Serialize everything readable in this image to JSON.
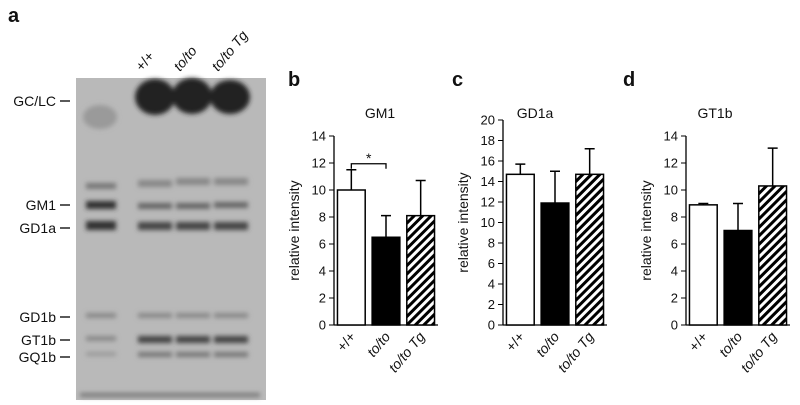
{
  "gel": {
    "panel": "a",
    "lanes": [
      "+/+",
      "to/to",
      "to/to Tg"
    ],
    "bands": [
      "GC/LC",
      "GM1",
      "GD1a",
      "GD1b",
      "GT1b",
      "GQ1b"
    ]
  },
  "chart_data": [
    {
      "type": "bar",
      "panel": "b",
      "title": "GM1",
      "ylabel": "relative intensity",
      "categories": [
        "+/+",
        "to/to",
        "to/to Tg"
      ],
      "values": [
        10.0,
        6.5,
        8.1
      ],
      "errors": [
        1.5,
        1.6,
        2.6
      ],
      "fills": [
        "#ffffff",
        "#000000",
        "hatch"
      ],
      "ylim": [
        0,
        14
      ],
      "yticks": [
        0,
        2,
        4,
        6,
        8,
        10,
        12,
        14
      ],
      "annotation": "*"
    },
    {
      "type": "bar",
      "panel": "c",
      "title": "GD1a",
      "ylabel": "relative intensity",
      "categories": [
        "+/+",
        "to/to",
        "to/to Tg"
      ],
      "values": [
        14.7,
        11.9,
        14.7
      ],
      "errors": [
        1.0,
        3.1,
        2.5
      ],
      "fills": [
        "#ffffff",
        "#000000",
        "hatch"
      ],
      "ylim": [
        0,
        20
      ],
      "yticks": [
        0,
        2,
        4,
        6,
        8,
        10,
        12,
        14,
        16,
        18,
        20
      ]
    },
    {
      "type": "bar",
      "panel": "d",
      "title": "GT1b",
      "ylabel": "relative intensity",
      "categories": [
        "+/+",
        "to/to",
        "to/to Tg"
      ],
      "values": [
        8.9,
        7.0,
        10.3
      ],
      "errors": [
        0.1,
        2.0,
        2.8
      ],
      "fills": [
        "#ffffff",
        "#000000",
        "hatch"
      ],
      "ylim": [
        0,
        14
      ],
      "yticks": [
        0,
        2,
        4,
        6,
        8,
        10,
        12,
        14
      ]
    }
  ]
}
